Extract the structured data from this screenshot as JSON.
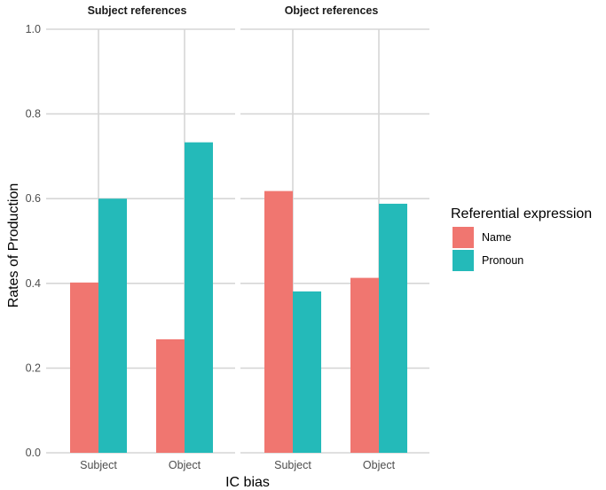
{
  "chart_data": {
    "type": "bar",
    "ylabel": "Rates of Production",
    "xlabel": "IC bias",
    "ylim": [
      0,
      1
    ],
    "yticks": [
      0.0,
      0.2,
      0.4,
      0.6,
      0.8,
      1.0
    ],
    "ytick_labels": [
      "0.0",
      "0.2",
      "0.4",
      "0.6",
      "0.8",
      "1.0"
    ],
    "categories": [
      "Subject",
      "Object"
    ],
    "grid": true,
    "legend": {
      "title": "Referential expression",
      "placement": "right",
      "entries": [
        {
          "name": "Name",
          "color": "#F07670"
        },
        {
          "name": "Pronoun",
          "color": "#24BAB9"
        }
      ]
    },
    "panels": [
      {
        "title": "Subject references",
        "series": [
          {
            "name": "Name",
            "values": [
              0.402,
              0.268
            ]
          },
          {
            "name": "Pronoun",
            "values": [
              0.6,
              0.733
            ]
          }
        ]
      },
      {
        "title": "Object references",
        "series": [
          {
            "name": "Name",
            "values": [
              0.618,
              0.413
            ]
          },
          {
            "name": "Pronoun",
            "values": [
              0.381,
              0.588
            ]
          }
        ]
      }
    ]
  }
}
